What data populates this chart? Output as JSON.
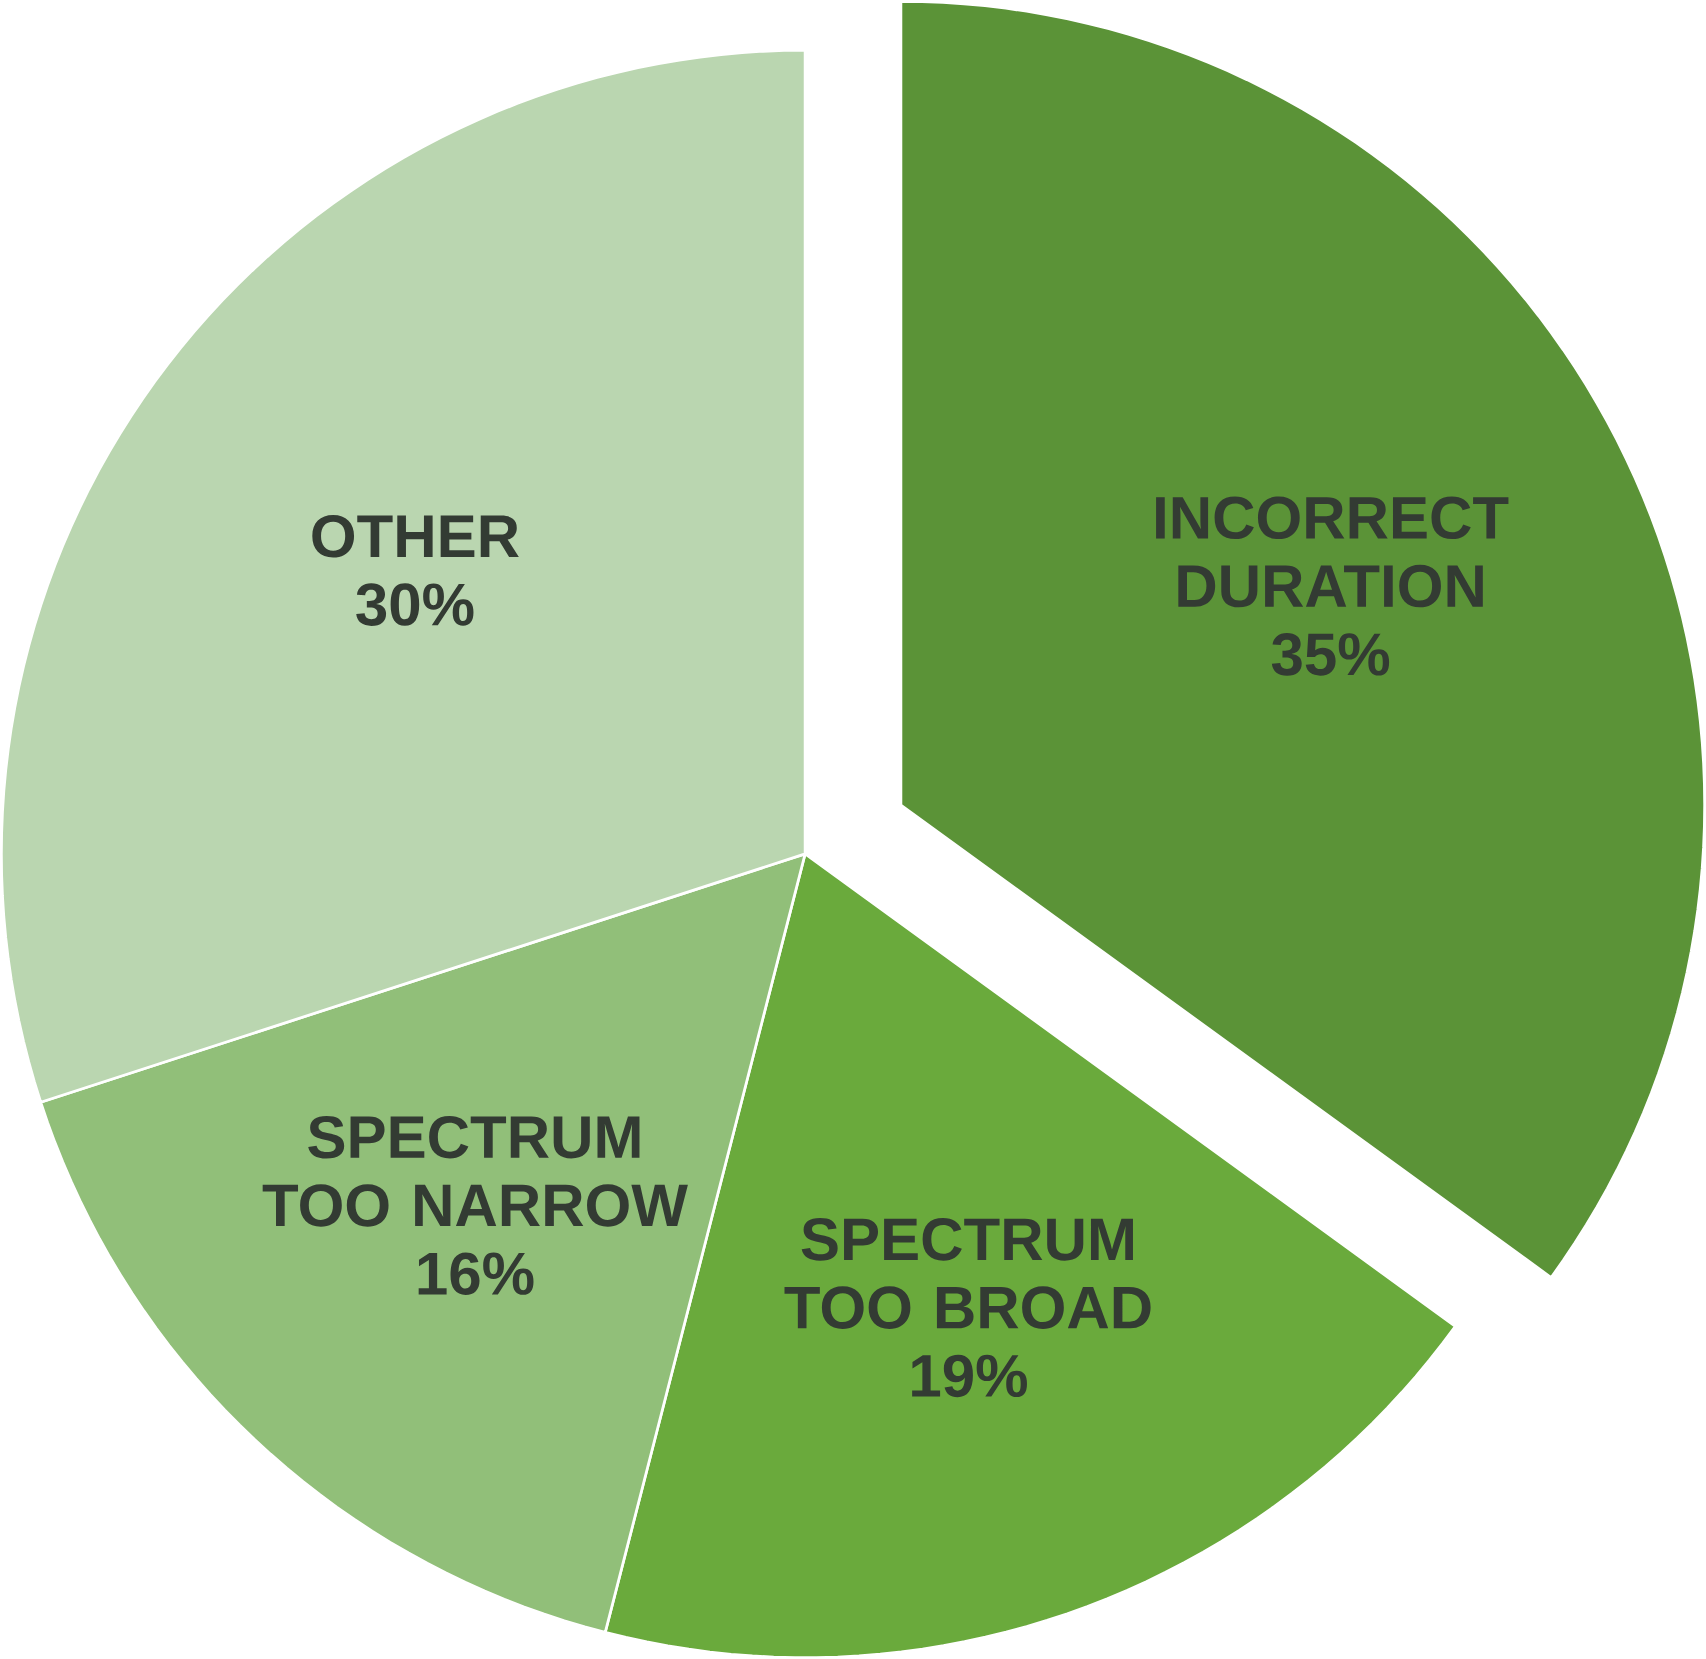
{
  "chart_data": {
    "type": "pie",
    "categories": [
      "INCORRECT DURATION",
      "SPECTRUM TOO BROAD",
      "SPECTRUM TOO NARROW",
      "OTHER"
    ],
    "values": [
      35,
      19,
      16,
      30
    ],
    "colors": [
      "#5b9337",
      "#6aaa3c",
      "#91bf79",
      "#bad6b0"
    ],
    "value_labels": [
      "35%",
      "19%",
      "16%",
      "30%"
    ]
  }
}
